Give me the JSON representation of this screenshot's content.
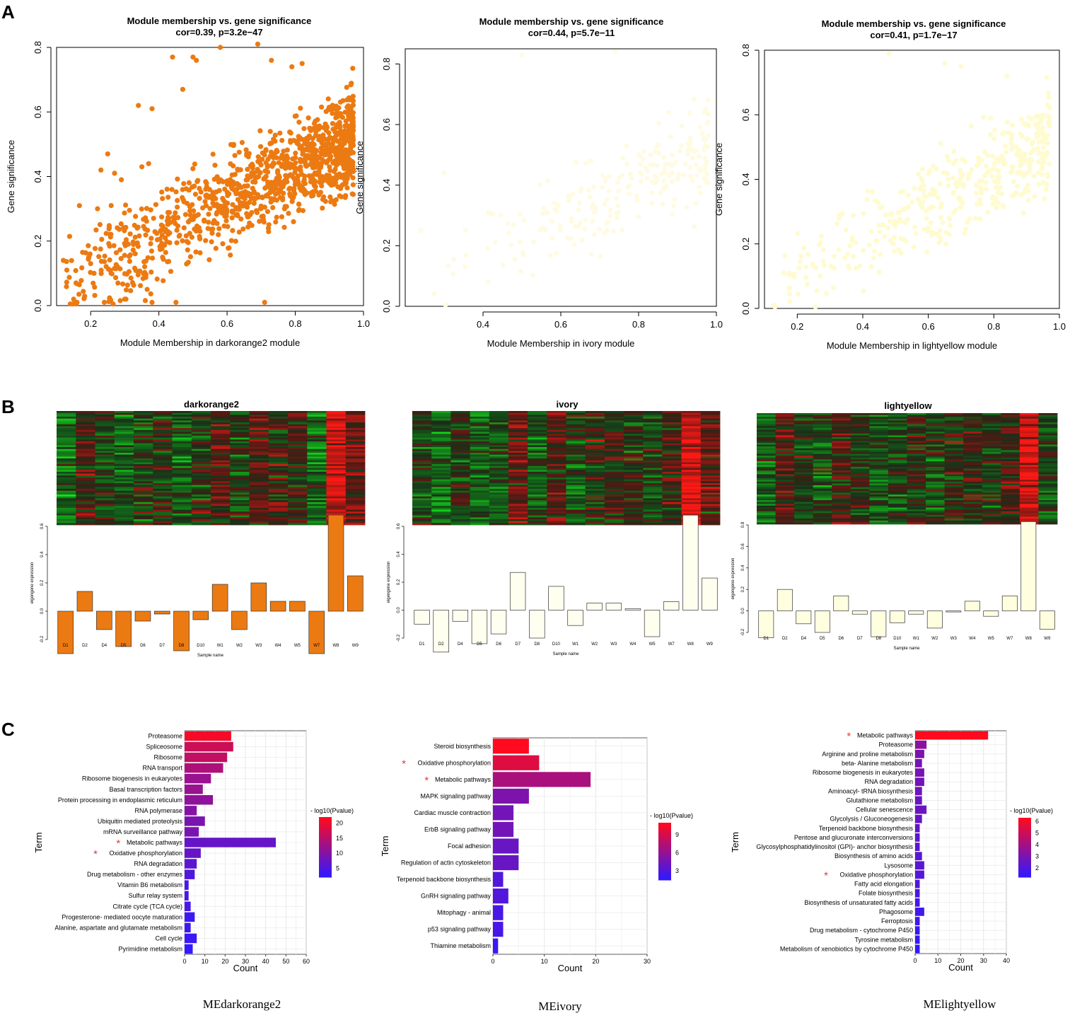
{
  "panels": {
    "a": "A",
    "b": "B",
    "c": "C"
  },
  "chart_data": [
    {
      "id": "A1",
      "type": "scatter",
      "title": "Module membership vs. gene significance",
      "subtitle": "cor=0.39, p=3.2e−47",
      "xlabel": "Module Membership in darkorange2 module",
      "ylabel": "Gene significance",
      "xlim": [
        0.1,
        1.0
      ],
      "ylim": [
        0.0,
        0.8
      ],
      "xticks": [
        "0.2",
        "0.4",
        "0.6",
        "0.8",
        "1.0"
      ],
      "yticks": [
        "0.0",
        "0.2",
        "0.4",
        "0.6",
        "0.8"
      ],
      "color": "#ec7a12",
      "n_points": 1100,
      "x_range": [
        0.12,
        0.97
      ],
      "cor": 0.39,
      "points": [
        [
          0.12,
          0.14
        ],
        [
          0.13,
          0.11
        ],
        [
          0.15,
          0.02
        ],
        [
          0.16,
          0.01
        ],
        [
          0.2,
          0.13
        ],
        [
          0.21,
          0.1
        ],
        [
          0.22,
          0.3
        ],
        [
          0.23,
          0.42
        ],
        [
          0.24,
          0.01
        ],
        [
          0.25,
          0.47
        ],
        [
          0.26,
          0.31
        ],
        [
          0.27,
          0.41
        ],
        [
          0.28,
          0.07
        ],
        [
          0.29,
          0.39
        ],
        [
          0.3,
          0.02
        ],
        [
          0.34,
          0.62
        ],
        [
          0.35,
          0.43
        ],
        [
          0.37,
          0.44
        ],
        [
          0.38,
          0.61
        ],
        [
          0.44,
          0.77
        ],
        [
          0.47,
          0.67
        ],
        [
          0.5,
          0.77
        ],
        [
          0.51,
          0.76
        ],
        [
          0.58,
          0.8
        ],
        [
          0.69,
          0.81
        ],
        [
          0.73,
          0.76
        ],
        [
          0.79,
          0.74
        ],
        [
          0.82,
          0.75
        ],
        [
          0.38,
          0.01
        ],
        [
          0.45,
          0.01
        ],
        [
          0.71,
          0.01
        ]
      ]
    },
    {
      "id": "A2",
      "type": "scatter",
      "title": "Module membership vs. gene significance",
      "subtitle": "cor=0.44, p=5.7e−11",
      "xlabel": "Module Membership in ivory module",
      "ylabel": "Gene significance",
      "xlim": [
        0.2,
        1.0
      ],
      "ylim": [
        0.0,
        0.85
      ],
      "xticks": [
        "0.4",
        "0.6",
        "0.8",
        "1.0"
      ],
      "yticks": [
        "0.0",
        "0.2",
        "0.4",
        "0.6",
        "0.8"
      ],
      "color": "#fffbe3",
      "n_points": 230,
      "x_range": [
        0.24,
        0.98
      ],
      "cor": 0.44,
      "points": [
        [
          0.24,
          0.25
        ],
        [
          0.3,
          0.44
        ],
        [
          0.5,
          0.83
        ],
        [
          0.74,
          0.84
        ],
        [
          0.97,
          0.52
        ]
      ]
    },
    {
      "id": "A3",
      "type": "scatter",
      "title": "Module membership vs. gene significance",
      "subtitle": "cor=0.41, p=1.7e−17",
      "xlabel": "Module Membership in lightyellow module",
      "ylabel": "Gene significance",
      "xlim": [
        0.1,
        1.0
      ],
      "ylim": [
        0.0,
        0.8
      ],
      "xticks": [
        "0.2",
        "0.4",
        "0.6",
        "0.8",
        "1.0"
      ],
      "yticks": [
        "0.0",
        "0.2",
        "0.4",
        "0.6",
        "0.8"
      ],
      "color": "#fffbd0",
      "n_points": 420,
      "x_range": [
        0.13,
        0.97
      ],
      "cor": 0.41,
      "points": [
        [
          0.13,
          0.01
        ],
        [
          0.27,
          0.1
        ],
        [
          0.33,
          0.29
        ],
        [
          0.48,
          0.79
        ],
        [
          0.65,
          0.76
        ],
        [
          0.7,
          0.75
        ],
        [
          0.84,
          0.72
        ]
      ]
    },
    {
      "id": "B1",
      "type": "bar",
      "title": "darkorange2",
      "xlabel": "Sample name",
      "ylabel": "eigengene expression",
      "ylim": [
        -0.2,
        0.6
      ],
      "yticks": [
        "-0.2",
        "0.0",
        "0.2",
        "0.4",
        "0.6"
      ],
      "categories": [
        "D1",
        "D2",
        "D4",
        "D5",
        "D6",
        "D7",
        "D8",
        "D10",
        "W1",
        "W2",
        "W3",
        "W4",
        "W5",
        "W7",
        "W8",
        "W9"
      ],
      "values": [
        -0.3,
        0.14,
        -0.13,
        -0.25,
        -0.07,
        -0.02,
        -0.28,
        -0.06,
        0.19,
        -0.13,
        0.2,
        0.07,
        0.07,
        -0.3,
        0.68,
        0.25
      ],
      "bar_color": "#ec7a12"
    },
    {
      "id": "B2",
      "type": "bar",
      "title": "ivory",
      "xlabel": "Sample name",
      "ylabel": "eigengene expression",
      "ylim": [
        -0.2,
        0.6
      ],
      "yticks": [
        "-0.2",
        "0.0",
        "0.2",
        "0.4",
        "0.6"
      ],
      "categories": [
        "D1",
        "D2",
        "D4",
        "D5",
        "D6",
        "D7",
        "D8",
        "D10",
        "W1",
        "W2",
        "W3",
        "W4",
        "W5",
        "W7",
        "W8",
        "W9"
      ],
      "values": [
        -0.1,
        -0.3,
        -0.08,
        -0.24,
        -0.17,
        0.27,
        -0.2,
        0.17,
        -0.11,
        0.05,
        0.05,
        0.01,
        -0.19,
        0.06,
        0.68,
        0.23
      ],
      "bar_color": "#fffff0"
    },
    {
      "id": "B3",
      "type": "bar",
      "title": "lightyellow",
      "xlabel": "Sample name",
      "ylabel": "eigengene expression",
      "ylim": [
        -0.2,
        0.8
      ],
      "yticks": [
        "-0.2",
        "0.0",
        "0.2",
        "0.4",
        "0.6",
        "0.8"
      ],
      "categories": [
        "D1",
        "D2",
        "D4",
        "D5",
        "D6",
        "D7",
        "D8",
        "D10",
        "W1",
        "W2",
        "W3",
        "W4",
        "W5",
        "W7",
        "W8",
        "W9"
      ],
      "values": [
        -0.25,
        0.2,
        -0.12,
        -0.2,
        0.14,
        -0.03,
        -0.24,
        -0.11,
        -0.03,
        -0.16,
        -0.01,
        0.09,
        -0.05,
        0.14,
        0.83,
        -0.17
      ],
      "bar_color": "#ffffe0"
    },
    {
      "id": "C1",
      "type": "bar",
      "orientation": "horizontal",
      "xlabel": "Count",
      "ylabel": "Term",
      "xlim": [
        0,
        60
      ],
      "xticks": [
        "0",
        "10",
        "20",
        "30",
        "40",
        "50",
        "60"
      ],
      "legend_title": "- log10(Pvalue)",
      "legend_ticks": [
        "5",
        "10",
        "15",
        "20"
      ],
      "legend_range": [
        2,
        22
      ],
      "caption": "MEdarkorange2",
      "terms": [
        "Proteasome",
        "Spliceosome",
        "Ribosome",
        "RNA transport",
        "Ribosome biogenesis in eukaryotes",
        "Basal transcription factors",
        "Protein processing in endoplasmic reticulum",
        "RNA polymerase",
        "Ubiquitin mediated proteolysis",
        "mRNA surveillance pathway",
        "Metabolic pathways",
        "Oxidative phosphorylation",
        "RNA degradation",
        "Drug metabolism -  other enzymes",
        "Vitamin B6 metabolism",
        "Sulfur relay system",
        "Citrate cycle (TCA cycle)",
        "Progesterone- mediated oocyte maturation",
        "Alanine, aspartate and glutamate metabolism",
        "Cell cycle",
        "Pyrimidine metabolism"
      ],
      "values": [
        23,
        24,
        21,
        19,
        13,
        9,
        14,
        6,
        10,
        7,
        45,
        8,
        6,
        5,
        2,
        2,
        3,
        5,
        3,
        6,
        4
      ],
      "pvalue": [
        21,
        17,
        16,
        14,
        12,
        12,
        11,
        10,
        9,
        9,
        7,
        7,
        6,
        5,
        4,
        4,
        4,
        3,
        3,
        3,
        2
      ],
      "starred": [
        10,
        11
      ]
    },
    {
      "id": "C2",
      "type": "bar",
      "orientation": "horizontal",
      "xlabel": "Count",
      "ylabel": "Term",
      "xlim": [
        0,
        30
      ],
      "xticks": [
        "0",
        "10",
        "20",
        "30"
      ],
      "legend_title": "- log10(Pvalue)",
      "legend_ticks": [
        "3",
        "6",
        "9"
      ],
      "legend_range": [
        1.5,
        11
      ],
      "caption": "MEivory",
      "terms": [
        "Steroid biosynthesis",
        "Oxidative phosphorylation",
        "Metabolic pathways",
        "MAPK signaling pathway",
        "Cardiac muscle contraction",
        "ErbB signaling pathway",
        "Focal adhesion",
        "Regulation of actin cytoskeleton",
        "Terpenoid backbone biosynthesis",
        "GnRH signaling pathway",
        "Mitophagy -  animal",
        "p53 signaling pathway",
        "Thiamine metabolism"
      ],
      "values": [
        7,
        9,
        19,
        7,
        4,
        4,
        5,
        5,
        2,
        3,
        2,
        2,
        1
      ],
      "pvalue": [
        11,
        9.5,
        7,
        5,
        4.5,
        4.5,
        4,
        4,
        3,
        3,
        2.5,
        2.5,
        2
      ],
      "starred": [
        1,
        2
      ]
    },
    {
      "id": "C3",
      "type": "bar",
      "orientation": "horizontal",
      "xlabel": "Count",
      "ylabel": "Term",
      "xlim": [
        0,
        40
      ],
      "xticks": [
        "0",
        "10",
        "20",
        "30",
        "40"
      ],
      "legend_title": "- log10(Pvalue)",
      "legend_ticks": [
        "2",
        "3",
        "4",
        "5",
        "6"
      ],
      "legend_range": [
        1.2,
        6.3
      ],
      "caption": "MElightyellow",
      "terms": [
        "Metabolic pathways",
        "Proteasome",
        "Arginine and proline metabolism",
        "beta- Alanine metabolism",
        "Ribosome biogenesis in eukaryotes",
        "RNA degradation",
        "Aminoacyl- tRNA biosynthesis",
        "Glutathione metabolism",
        "Cellular senescence",
        "Glycolysis / Gluconeogenesis",
        "Terpenoid backbone biosynthesis",
        "Pentose and glucuronate interconversions",
        "Glycosylphosphatidylinositol (GPI)- anchor biosynthesis",
        "Biosynthesis of amino acids",
        "Lysosome",
        "Oxidative phosphorylation",
        "Fatty acid elongation",
        "Folate biosynthesis",
        "Biosynthesis of unsaturated fatty acids",
        "Phagosome",
        "Ferroptosis",
        "Drug metabolism -  cytochrome P450",
        "Tyrosine metabolism",
        "Metabolism of xenobiotics by cytochrome P450"
      ],
      "values": [
        32,
        5,
        4,
        3,
        4,
        4,
        3,
        3,
        5,
        3,
        2,
        2,
        2,
        3,
        4,
        4,
        2,
        2,
        2,
        4,
        2,
        2,
        2,
        2
      ],
      "pvalue": [
        6.3,
        3.4,
        3.1,
        2.9,
        2.9,
        2.8,
        2.7,
        2.6,
        2.6,
        2.5,
        2.4,
        2.3,
        2.2,
        2.2,
        2.2,
        2.1,
        2.0,
        1.8,
        1.7,
        1.6,
        1.5,
        1.4,
        1.3,
        1.2
      ],
      "starred": [
        0,
        15
      ]
    }
  ]
}
